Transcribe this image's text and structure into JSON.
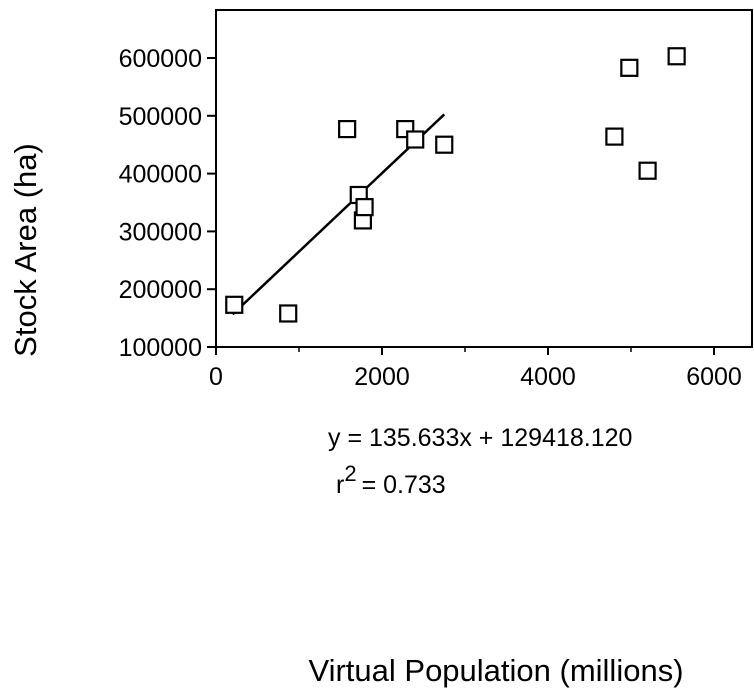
{
  "chart_data": {
    "type": "scatter",
    "title": "",
    "xlabel": "Virtual Population (millions)",
    "ylabel": "Stock Area (ha)",
    "xlim": [
      0,
      6500
    ],
    "ylim": [
      100000,
      650000
    ],
    "x_ticks": [
      0,
      2000,
      4000,
      6000
    ],
    "x_tick_labels": [
      "0",
      "2000",
      "4000",
      "6000"
    ],
    "y_ticks": [
      100000,
      200000,
      300000,
      400000,
      500000,
      600000
    ],
    "y_tick_labels": [
      "100000",
      "200000",
      "300000",
      "400000",
      "500000",
      "600000"
    ],
    "grid": false,
    "marker": "open-square",
    "points": [
      {
        "x": 220,
        "y": 173000
      },
      {
        "x": 870,
        "y": 158000
      },
      {
        "x": 1580,
        "y": 477000
      },
      {
        "x": 1720,
        "y": 363000
      },
      {
        "x": 1770,
        "y": 319000
      },
      {
        "x": 1790,
        "y": 342000
      },
      {
        "x": 2280,
        "y": 477000
      },
      {
        "x": 2400,
        "y": 459000
      },
      {
        "x": 2750,
        "y": 450000
      },
      {
        "x": 4800,
        "y": 464000
      },
      {
        "x": 4980,
        "y": 583000
      },
      {
        "x": 5200,
        "y": 405000
      },
      {
        "x": 5550,
        "y": 603000
      }
    ],
    "fit_line": {
      "x_start": 200,
      "x_end": 2750,
      "slope": 135.633,
      "intercept": 129418.12
    },
    "annotations": {
      "equation": "y = 135.633x + 129418.120",
      "r_prefix": "r",
      "r_superscript": "2",
      "r_value": "= 0.733"
    }
  }
}
